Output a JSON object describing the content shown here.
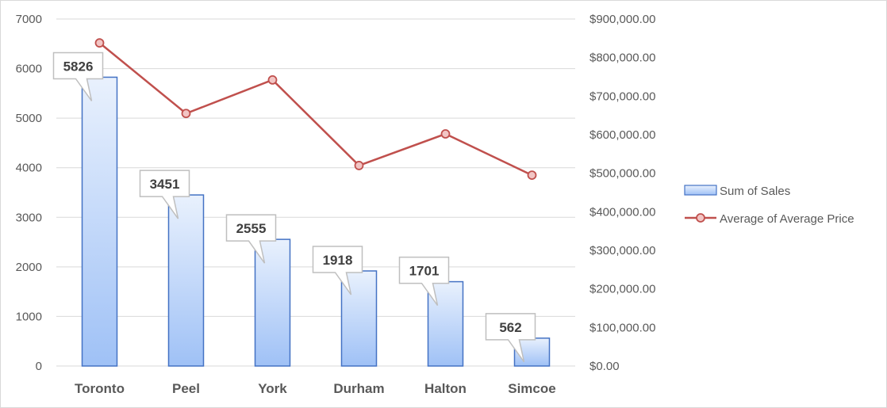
{
  "chart_data": {
    "type": "bar",
    "categories": [
      "Toronto",
      "Peel",
      "York",
      "Durham",
      "Halton",
      "Simcoe"
    ],
    "series": [
      {
        "name": "Sum of Sales",
        "kind": "bar",
        "axis": "left",
        "values": [
          5826,
          3451,
          2555,
          1918,
          1701,
          562
        ]
      },
      {
        "name": "Average of Average Price",
        "kind": "line",
        "axis": "right",
        "values": [
          838000,
          655000,
          742000,
          520000,
          602000,
          495000
        ]
      }
    ],
    "ylim_left": [
      0,
      7000
    ],
    "ylim_right": [
      0,
      900000
    ],
    "yticks_left": [
      "0",
      "1000",
      "2000",
      "3000",
      "4000",
      "5000",
      "6000",
      "7000"
    ],
    "yticks_right": [
      "$0.00",
      "$100,000.00",
      "$200,000.00",
      "$300,000.00",
      "$400,000.00",
      "$500,000.00",
      "$600,000.00",
      "$700,000.00",
      "$800,000.00",
      "$900,000.00"
    ],
    "data_labels": [
      "5826",
      "3451",
      "2555",
      "1918",
      "1701",
      "562"
    ],
    "legend": {
      "position": "right",
      "entries": [
        "Sum of Sales",
        "Average of Average Price"
      ]
    },
    "grid": true,
    "colors": {
      "bar_fill_top": "#e9f1fd",
      "bar_fill_bottom": "#9fc1f6",
      "bar_stroke": "#4472c4",
      "line": "#c0504d",
      "marker_fill": "#f2c5c4",
      "grid": "#d9d9d9",
      "callout_stroke": "#bfbfbf"
    }
  }
}
